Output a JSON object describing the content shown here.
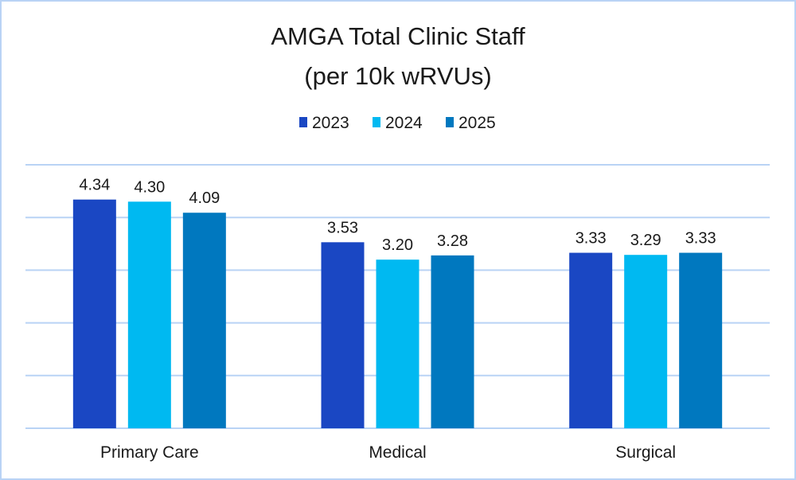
{
  "chart_data": {
    "type": "bar",
    "title": "AMGA Total Clinic Staff",
    "subtitle": "(per 10k wRVUs)",
    "categories": [
      "Primary Care",
      "Medical",
      "Surgical"
    ],
    "series": [
      {
        "name": "2023",
        "color": "#1A47C3",
        "values": [
          4.34,
          3.53,
          3.33
        ],
        "labels": [
          "4.34",
          "3.53",
          "3.33"
        ]
      },
      {
        "name": "2024",
        "color": "#00B9F1",
        "values": [
          4.3,
          3.2,
          3.29
        ],
        "labels": [
          "4.30",
          "3.20",
          "3.29"
        ]
      },
      {
        "name": "2025",
        "color": "#0078BF",
        "values": [
          4.09,
          3.28,
          3.33
        ],
        "labels": [
          "4.09",
          "3.28",
          "3.33"
        ]
      }
    ],
    "xlabel": "",
    "ylabel": "",
    "ylim": [
      0,
      5
    ],
    "gridlines": [
      0,
      1,
      2,
      3,
      4,
      5
    ],
    "grid": true,
    "legend_position": "top-center",
    "gridline_color": "#b9d3f5"
  }
}
